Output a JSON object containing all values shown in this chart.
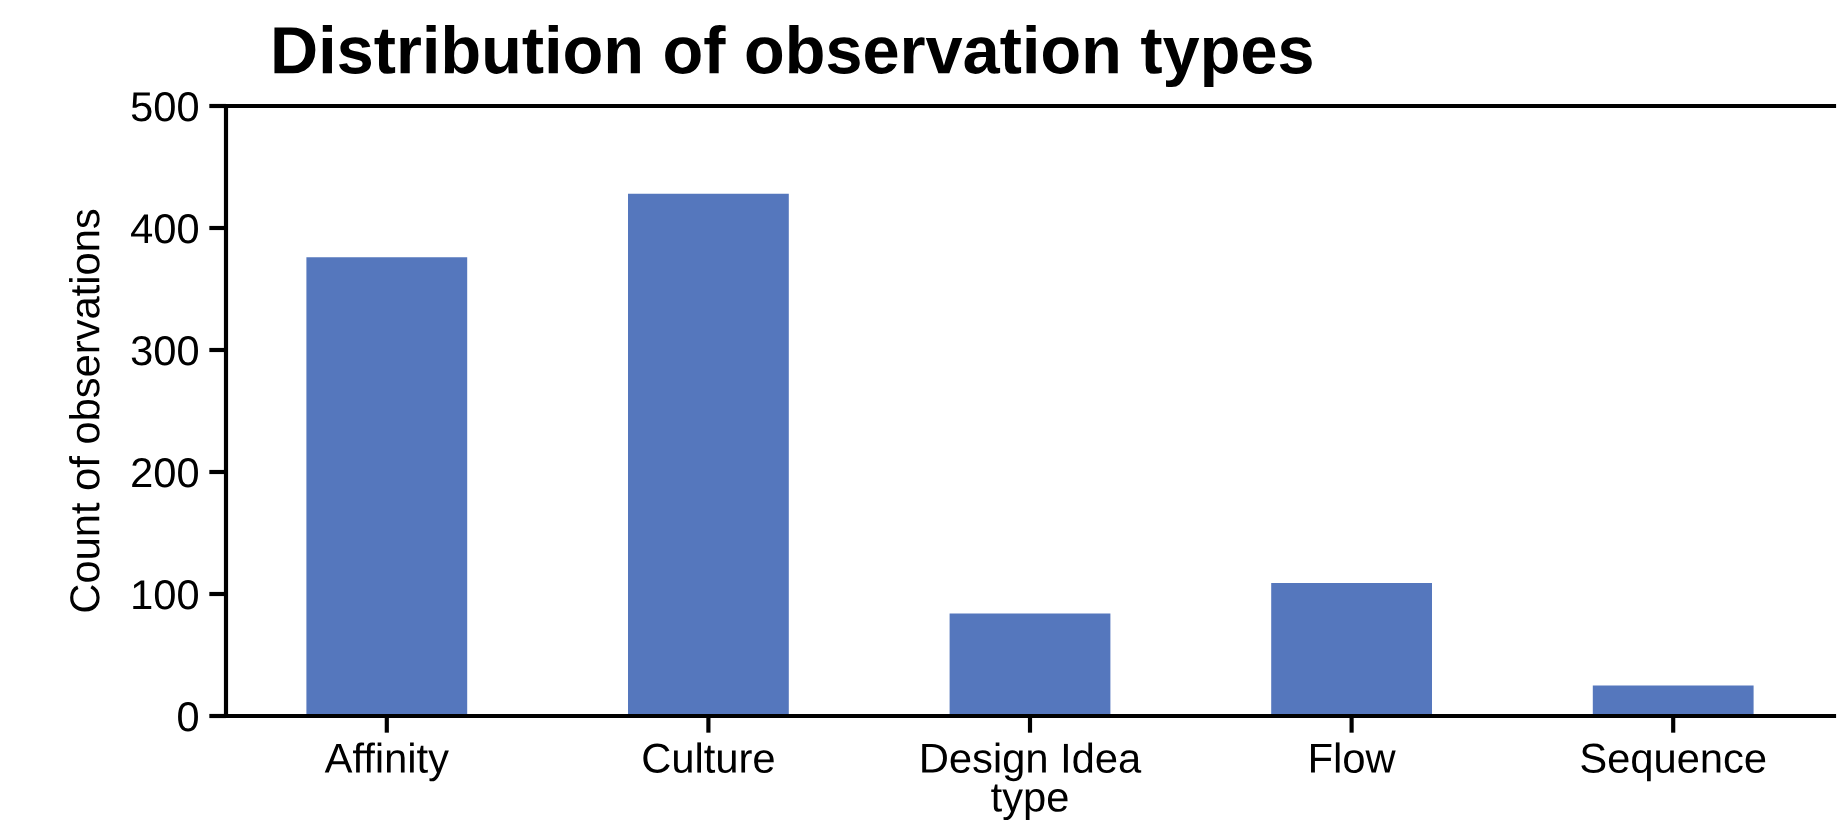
{
  "chart_data": {
    "type": "bar",
    "title": "Distribution of observation types",
    "xlabel": "type",
    "ylabel": "Count of observations",
    "categories": [
      "Affinity",
      "Culture",
      "Design Idea",
      "Flow",
      "Sequence"
    ],
    "values": [
      376,
      428,
      84,
      109,
      25
    ],
    "color": "#5577bd",
    "ylim": [
      0,
      500
    ],
    "yticks": [
      0,
      100,
      200,
      300,
      400,
      500
    ],
    "grid": false,
    "legend": false
  }
}
